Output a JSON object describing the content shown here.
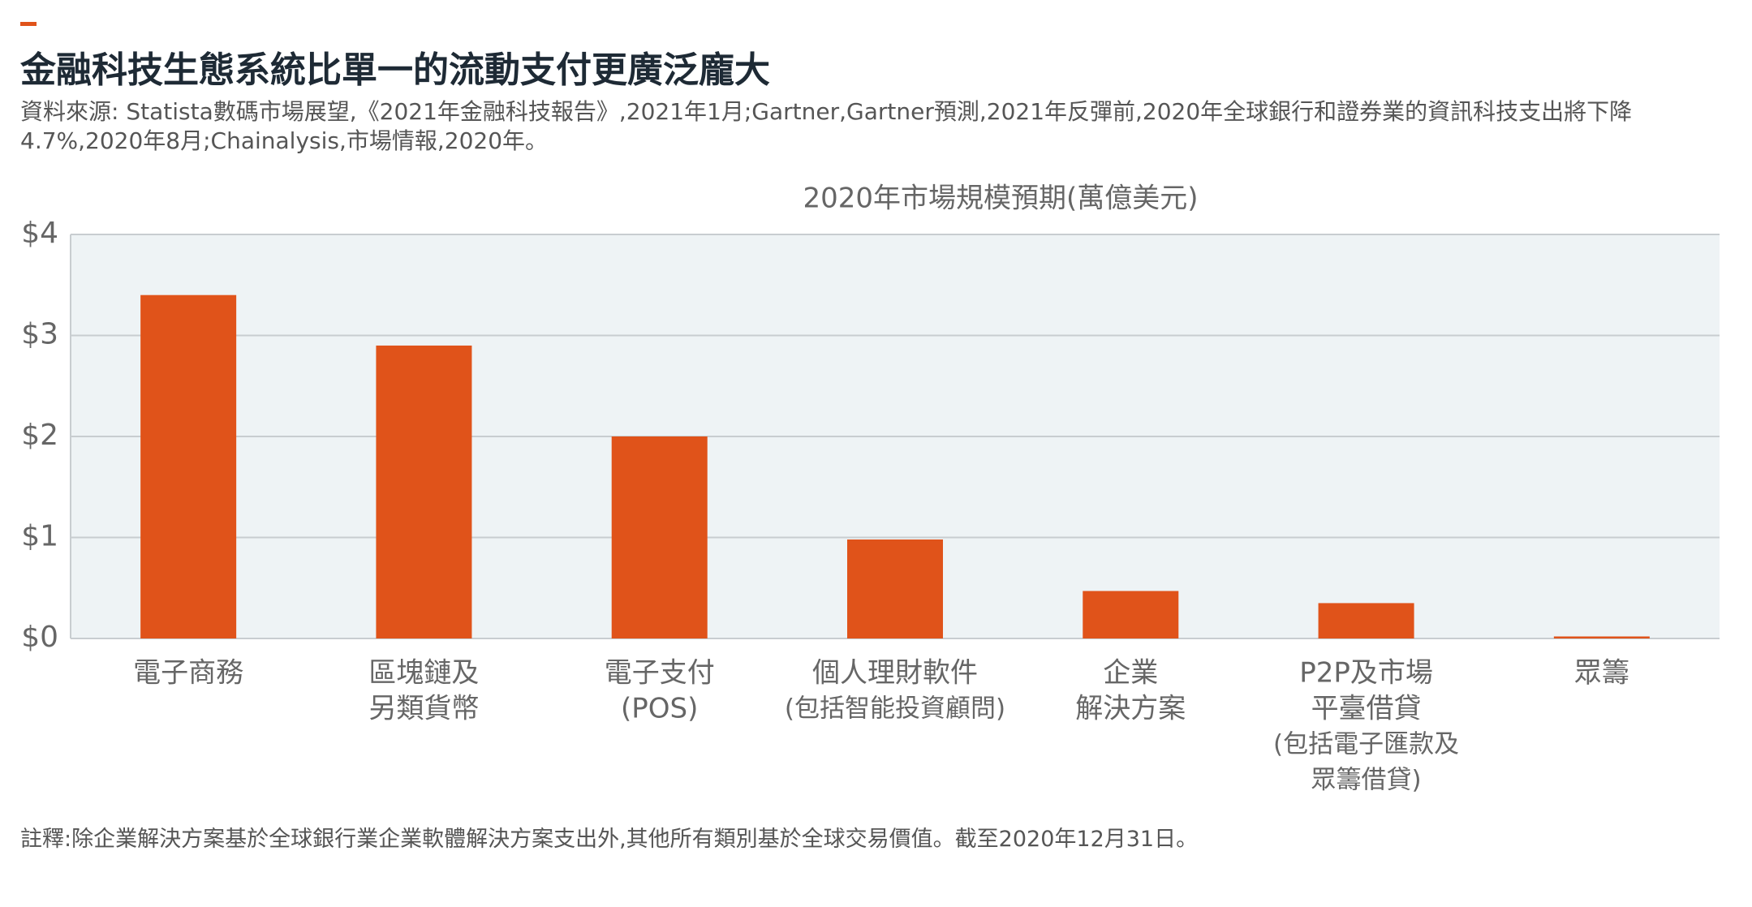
{
  "chart_data": {
    "type": "bar",
    "title": "金融科技生態系統比單一的流動支付更廣泛龐大",
    "subtitle": "資料來源: Statista數碼市場展望,《2021年金融科技報告》,2021年1月;Gartner,Gartner預測,2021年反彈前,2020年全球銀行和證券業的資訊科技支出將下降4.7%,2020年8月;Chainalysis,市場情報,2020年。",
    "chart_title": "2020年市場規模預期(萬億美元)",
    "footnote": "註釋:除企業解決方案基於全球銀行業企業軟體解決方案支出外,其他所有類別基於全球交易價值。截至2020年12月31日。",
    "categories": [
      [
        "電子商務"
      ],
      [
        "區塊鏈及",
        "另類貨幣"
      ],
      [
        "電子支付",
        "(POS)"
      ],
      [
        "個人理財軟件",
        "(包括智能投資顧問)"
      ],
      [
        "企業",
        "解決方案"
      ],
      [
        "P2P及市場",
        "平臺借貸",
        "(包括電子匯款及",
        "眾籌借貸)"
      ],
      [
        "眾籌"
      ]
    ],
    "values": [
      3.4,
      2.9,
      2.0,
      0.98,
      0.47,
      0.35,
      0.02
    ],
    "color": "#e0531a",
    "ylim": [
      0,
      4
    ],
    "yticks": [
      {
        "value": 0,
        "label": "$0"
      },
      {
        "value": 1,
        "label": "$1"
      },
      {
        "value": 2,
        "label": "$2"
      },
      {
        "value": 3,
        "label": "$3"
      },
      {
        "value": 4,
        "label": "$4"
      }
    ],
    "grid": true
  }
}
